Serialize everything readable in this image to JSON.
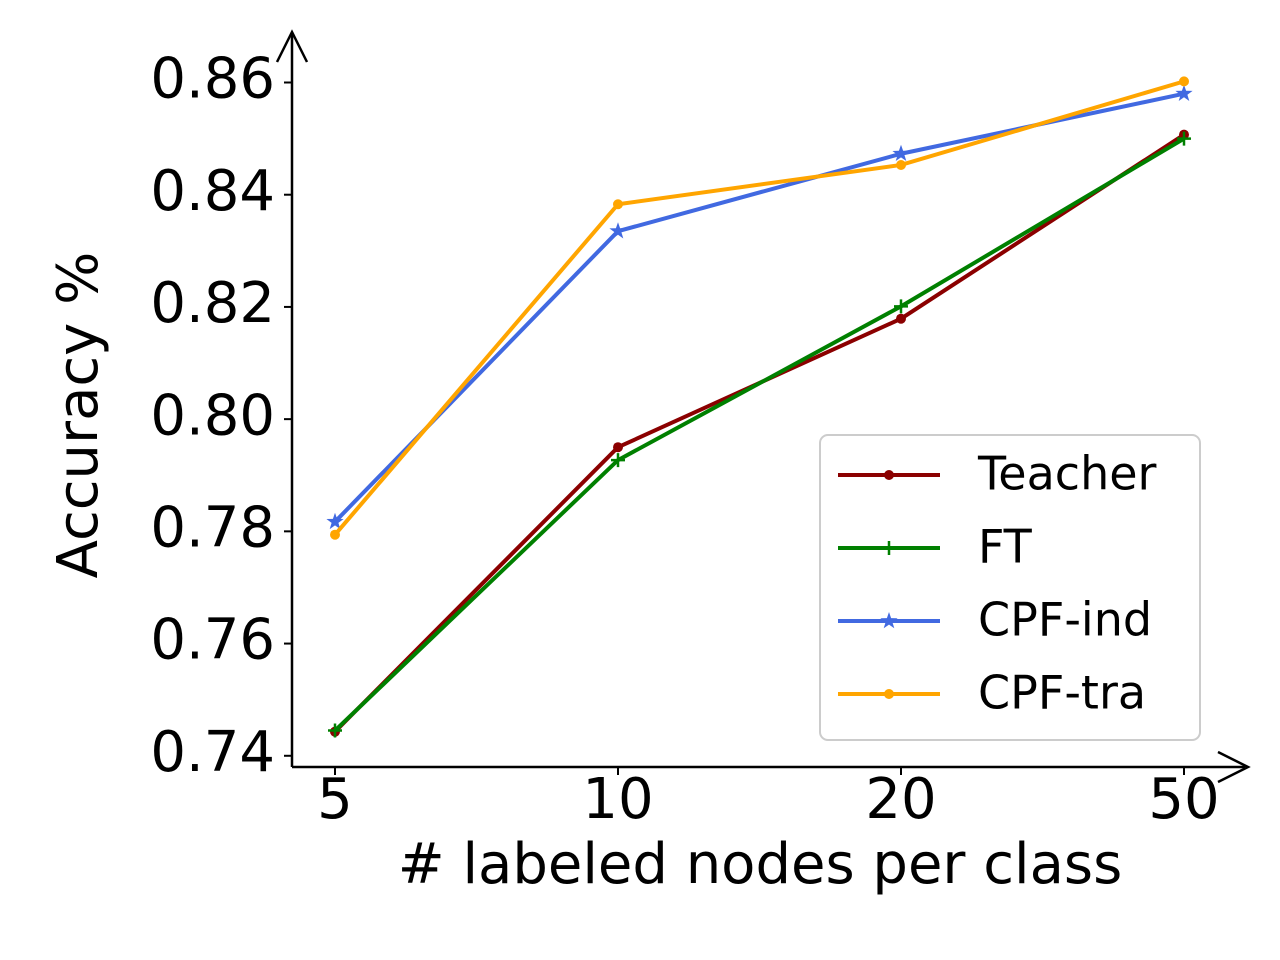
{
  "chart_data": {
    "type": "line",
    "xlabel": "# labeled nodes per class",
    "ylabel": "Accuracy %",
    "categories": [
      "5",
      "10",
      "20",
      "50"
    ],
    "ylim": [
      0.738,
      0.869
    ],
    "yticks": [
      0.74,
      0.76,
      0.78,
      {
        "value": 0.8,
        "label": "0.80"
      },
      0.82,
      0.84,
      0.86
    ],
    "legend": "lower right",
    "series": [
      {
        "name": "Teacher",
        "color": "#8b0000",
        "marker": "dot",
        "values": [
          0.7443,
          0.795,
          0.8179,
          0.8507
        ]
      },
      {
        "name": "FT",
        "color": "#008000",
        "marker": "plus",
        "values": [
          0.7445,
          0.7927,
          0.8201,
          0.85
        ]
      },
      {
        "name": "CPF-ind",
        "color": "#4169e1",
        "marker": "star",
        "values": [
          0.7817,
          0.8335,
          0.8473,
          0.858
        ]
      },
      {
        "name": "CPF-tra",
        "color": "#ffa500",
        "marker": "dot",
        "values": [
          0.7794,
          0.8383,
          0.8453,
          0.8602
        ]
      }
    ]
  }
}
